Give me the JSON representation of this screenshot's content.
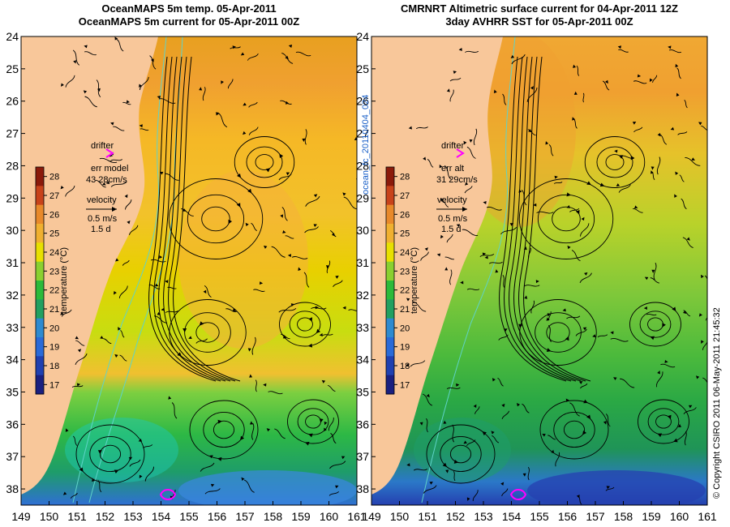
{
  "colors": {
    "land": "#f8c79a",
    "contour": "#5fd3c8",
    "arrow": "#000000",
    "drifter": "#ff00ff",
    "vertical_label": "#1a60c8"
  },
  "panels": [
    {
      "id": "model",
      "title_line1": "OceanMAPS 5m temp. 05-Apr-2011",
      "title_line2": "OceanMAPS 5m current for 05-Apr-2011 00Z",
      "drifter_label": "drifter",
      "err_label": "err model",
      "err_value": "43 28cm/s",
      "velocity_label": "velocity",
      "velocity_scale": "0.5 m/s",
      "velocity_time": "1.5 d"
    },
    {
      "id": "obs",
      "title_line1": "CMRNRT Altimetric surface current for 04-Apr-2011 12Z",
      "title_line2": "3day AVHRR SST for 05-Apr-2011 00Z",
      "drifter_label": "drifter",
      "err_label": "err alt",
      "err_value": "31 29cm/s",
      "velocity_label": "velocity",
      "velocity_scale": "0.5 m/s",
      "velocity_time": "1.5 d"
    }
  ],
  "map": {
    "lat_labels": [
      "24",
      "25",
      "26",
      "27",
      "28",
      "29",
      "30",
      "31",
      "32",
      "33",
      "34",
      "35",
      "36",
      "37",
      "38"
    ],
    "lon_labels": [
      "149",
      "150",
      "151",
      "152",
      "153",
      "154",
      "155",
      "156",
      "157",
      "158",
      "159",
      "160",
      "161"
    ],
    "lat_range": [
      24,
      38.5
    ],
    "lon_range": [
      149,
      161
    ]
  },
  "colorbar": {
    "label": "temperature (°C)",
    "ticks": [
      "28",
      "27",
      "26",
      "25",
      "24",
      "23",
      "22",
      "21",
      "20",
      "19",
      "18",
      "17"
    ]
  },
  "side_label": "ocean_fc_20110404_024",
  "copyright": "© Copyright CSIRO 2011   06-May-2011 21:45:32"
}
